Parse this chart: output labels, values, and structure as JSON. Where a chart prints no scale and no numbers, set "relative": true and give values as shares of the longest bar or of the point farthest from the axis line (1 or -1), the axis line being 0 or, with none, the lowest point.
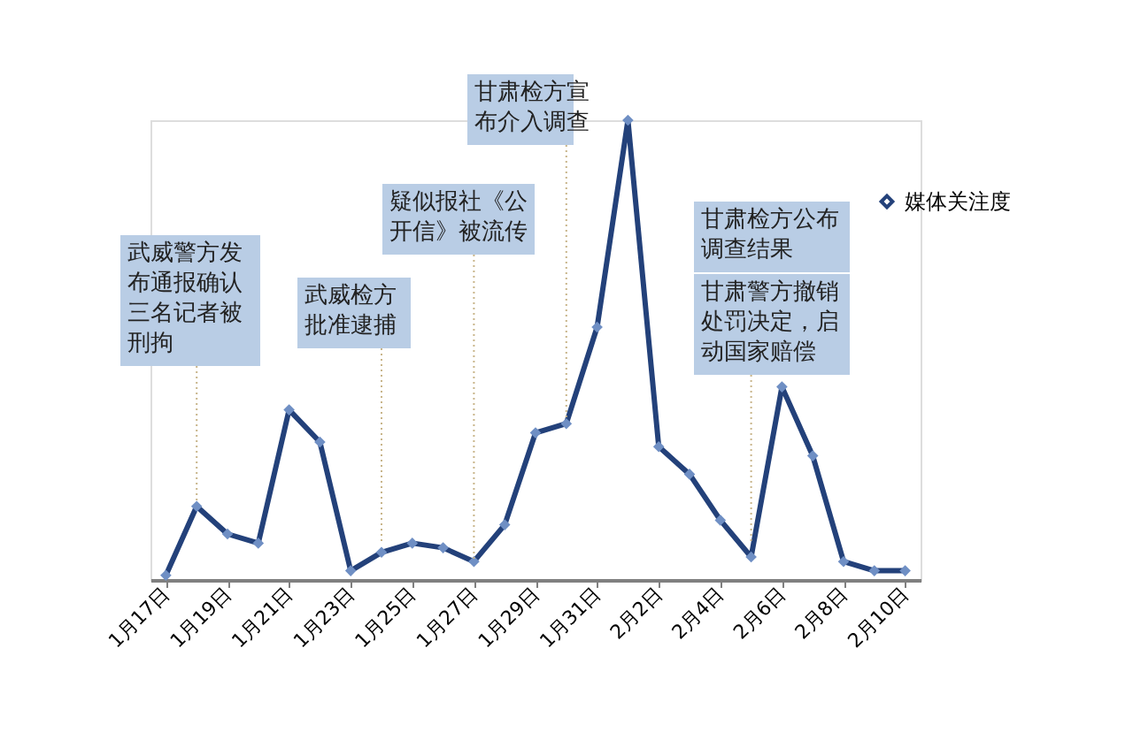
{
  "chart_data": {
    "type": "line",
    "relative": true,
    "categories": [
      "1月17日",
      null,
      "1月19日",
      null,
      "1月21日",
      null,
      "1月23日",
      null,
      "1月25日",
      null,
      "1月27日",
      null,
      "1月29日",
      null,
      "1月31日",
      null,
      "2月2日",
      null,
      "2月4日",
      null,
      "2月6日",
      null,
      "2月8日",
      null,
      "2月10日"
    ],
    "series": [
      {
        "name": "媒体关注度",
        "color": "#23417a",
        "values": [
          0.01,
          0.16,
          0.1,
          0.08,
          0.37,
          0.3,
          0.02,
          0.06,
          0.08,
          0.07,
          0.04,
          0.12,
          0.32,
          0.34,
          0.55,
          1,
          0.29,
          0.23,
          0.13,
          0.05,
          0.42,
          0.27,
          0.04,
          0.02,
          0.02
        ]
      }
    ],
    "annotations": [
      "武威警方发布通报确认三名记者被刑拘",
      "武威检方批准逮捕",
      "疑似报社《公开信》被流传",
      "甘肃检方宣布介入调查",
      "甘肃检方公布调查结果",
      "甘肃警方撤销处罚决定，启动国家赔偿"
    ],
    "marker": "diamond",
    "line_style": "solid",
    "legend": "right",
    "grid": false
  }
}
